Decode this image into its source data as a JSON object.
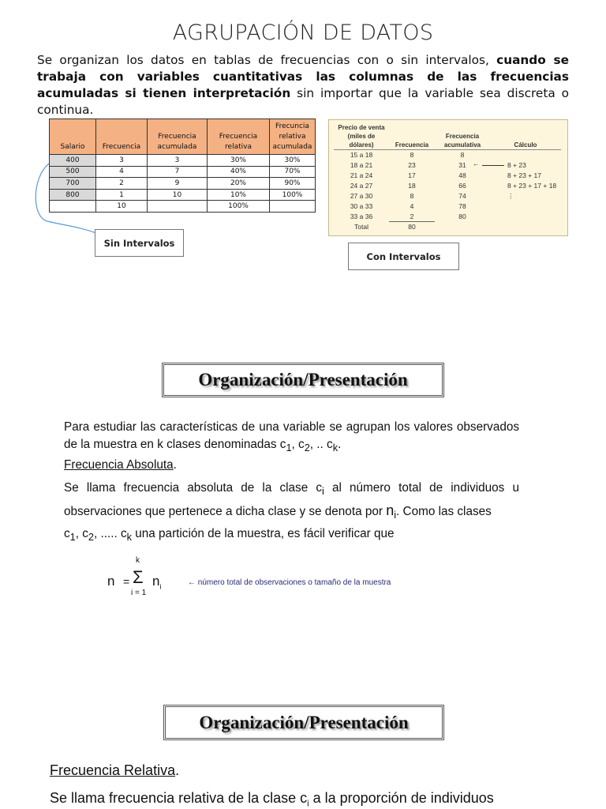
{
  "title": "AGRUPACIÓN DE DATOS",
  "intro": {
    "part1": "Se organizan los datos en tablas de frecuencias con o sin intervalos, ",
    "bold1": "cuando se trabaja con variables cuantitativas las columnas de las frecuencias acumuladas si tienen interpretación",
    "part2": " sin importar que la variable sea discreta o continua."
  },
  "table_sin": {
    "headers": [
      "Salario",
      "Frecuencia",
      "Frecuencia acumulada",
      "Frecuencia relativa",
      "Frecuncia relativa acumulada"
    ],
    "rows": [
      [
        "400",
        "3",
        "3",
        "30%",
        "30%"
      ],
      [
        "500",
        "4",
        "7",
        "40%",
        "70%"
      ],
      [
        "700",
        "2",
        "9",
        "20%",
        "90%"
      ],
      [
        "800",
        "1",
        "10",
        "10%",
        "100%"
      ],
      [
        "",
        "10",
        "",
        "100%",
        ""
      ]
    ]
  },
  "table_con": {
    "headers": [
      "Precio de venta (miles de dólares)",
      "Frecuencia",
      "Frecuencia acumulativa",
      "Cálculo"
    ],
    "rows": [
      [
        "15 a 18",
        "8",
        "8",
        ""
      ],
      [
        "18 a 21",
        "23",
        "31",
        "8 + 23"
      ],
      [
        "21 a 24",
        "17",
        "48",
        "8 + 23 + 17"
      ],
      [
        "24 a 27",
        "18",
        "66",
        "8 + 23 + 17 + 18"
      ],
      [
        "27 a 30",
        "8",
        "74",
        "⋮"
      ],
      [
        "30 a 33",
        "4",
        "78",
        ""
      ],
      [
        "33 a 36",
        "2",
        "80",
        ""
      ]
    ],
    "total_label": "Total",
    "total_value": "80",
    "arrow": "←"
  },
  "label_sin": "Sin Intervalos",
  "label_con": "Con Intervalos",
  "heading": "Organización/Presentación",
  "sec1": {
    "p1": "Para estudiar  las características de una variable se agrupan los valores observados de la muestra en k clases denominadas c",
    "p1_rest": ", c",
    "p1_rest2": ", .. c",
    "p1_end": ".",
    "sub1": "1",
    "sub2": "2",
    "subk": "k",
    "sub_i": "i",
    "term": "Frecuencia Absoluta",
    "term_end": ".",
    "p2a": "Se llama frecuencia absoluta de la clase c",
    "p2b": " al número total de individuos u observaciones que pertenece a dicha clase y se denota por ",
    "p2_n": "n",
    "p2c": ". Como las clases",
    "p3a": "c",
    "p3b": ", c",
    "p3c": ", .....  c",
    "p3d": " una partición de la muestra, es fácil verificar que"
  },
  "formula": {
    "lhs": "n",
    "eq": "=",
    "sigma": "Σ",
    "upper": "k",
    "lower": "i = 1",
    "term": "n",
    "term_sub": "i",
    "note": "← número total de observaciones o tamaño de la muestra"
  },
  "sec2": {
    "term": "Frecuencia Relativa",
    "term_end": ".",
    "p1a": "Se llama frecuencia relativa de la clase c",
    "sub_i": "i",
    "p1b": " a la proporción de individuos"
  }
}
